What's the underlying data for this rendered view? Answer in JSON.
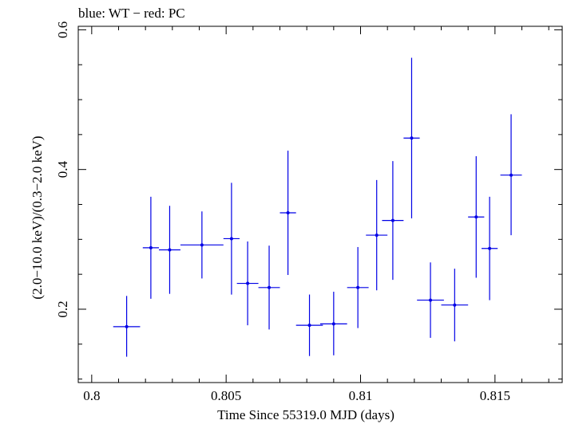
{
  "chart_data": {
    "type": "scatter",
    "title": "blue: WT − red: PC",
    "xlabel": "Time Since 55319.0 MJD (days)",
    "ylabel": "(2.0−10.0 keV)/(0.3−2.0 keV)",
    "xlim": [
      0.7995,
      0.8175
    ],
    "ylim": [
      0.095,
      0.605
    ],
    "xticks": [
      0.8,
      0.805,
      0.81,
      0.815
    ],
    "xtick_labels": [
      "0.8",
      "0.805",
      "0.81",
      "0.815"
    ],
    "yticks": [
      0.2,
      0.4,
      0.6
    ],
    "ytick_labels": [
      "0.2",
      "0.4",
      "0.6"
    ],
    "grid": false,
    "series": [
      {
        "color": "#0000e6",
        "points": [
          {
            "x": 0.8013,
            "xerr": 0.0005,
            "y": 0.175,
            "ylo": 0.132,
            "yhi": 0.219
          },
          {
            "x": 0.8022,
            "xerr": 0.0003,
            "y": 0.288,
            "ylo": 0.215,
            "yhi": 0.361
          },
          {
            "x": 0.8029,
            "xerr": 0.0004,
            "y": 0.285,
            "ylo": 0.222,
            "yhi": 0.348
          },
          {
            "x": 0.8041,
            "xerr": 0.0008,
            "y": 0.292,
            "ylo": 0.244,
            "yhi": 0.34
          },
          {
            "x": 0.8052,
            "xerr": 0.0003,
            "y": 0.301,
            "ylo": 0.221,
            "yhi": 0.381
          },
          {
            "x": 0.8058,
            "xerr": 0.0004,
            "y": 0.237,
            "ylo": 0.177,
            "yhi": 0.297
          },
          {
            "x": 0.8066,
            "xerr": 0.0004,
            "y": 0.231,
            "ylo": 0.171,
            "yhi": 0.291
          },
          {
            "x": 0.8073,
            "xerr": 0.0003,
            "y": 0.338,
            "ylo": 0.249,
            "yhi": 0.427
          },
          {
            "x": 0.8081,
            "xerr": 0.0005,
            "y": 0.177,
            "ylo": 0.133,
            "yhi": 0.221
          },
          {
            "x": 0.809,
            "xerr": 0.0005,
            "y": 0.179,
            "ylo": 0.134,
            "yhi": 0.225
          },
          {
            "x": 0.8099,
            "xerr": 0.0004,
            "y": 0.231,
            "ylo": 0.173,
            "yhi": 0.289
          },
          {
            "x": 0.8106,
            "xerr": 0.0004,
            "y": 0.306,
            "ylo": 0.227,
            "yhi": 0.385
          },
          {
            "x": 0.8112,
            "xerr": 0.0004,
            "y": 0.327,
            "ylo": 0.242,
            "yhi": 0.412
          },
          {
            "x": 0.8119,
            "xerr": 0.0003,
            "y": 0.445,
            "ylo": 0.33,
            "yhi": 0.56
          },
          {
            "x": 0.8126,
            "xerr": 0.0005,
            "y": 0.213,
            "ylo": 0.159,
            "yhi": 0.267
          },
          {
            "x": 0.8135,
            "xerr": 0.0005,
            "y": 0.206,
            "ylo": 0.154,
            "yhi": 0.258
          },
          {
            "x": 0.8143,
            "xerr": 0.0003,
            "y": 0.332,
            "ylo": 0.245,
            "yhi": 0.419
          },
          {
            "x": 0.8148,
            "xerr": 0.0003,
            "y": 0.287,
            "ylo": 0.213,
            "yhi": 0.361
          },
          {
            "x": 0.8156,
            "xerr": 0.0004,
            "y": 0.392,
            "ylo": 0.306,
            "yhi": 0.479
          }
        ]
      }
    ]
  }
}
